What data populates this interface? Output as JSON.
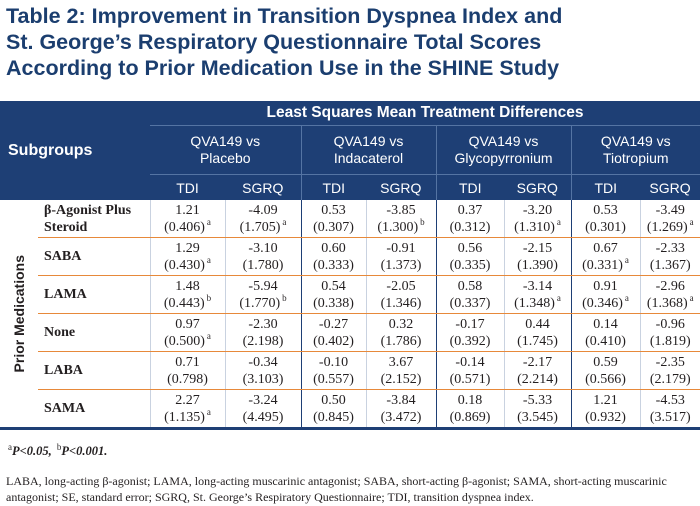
{
  "title": {
    "line1": "Table 2: Improvement in Transition Dyspnea Index and",
    "line2": "St. George’s Respiratory Questionnaire Total Scores",
    "line3": "According to Prior Medication Use in the SHINE Study"
  },
  "header": {
    "group_title": "Least Squares Mean Treatment Differences",
    "subgroups_label": "Subgroups",
    "comparisons": [
      {
        "line1": "QVA149 vs",
        "line2": "Placebo"
      },
      {
        "line1": "QVA149 vs",
        "line2": "Indacaterol"
      },
      {
        "line1": "QVA149 vs",
        "line2": "Glycopyrronium"
      },
      {
        "line1": "QVA149 vs",
        "line2": "Tiotropium"
      }
    ],
    "measures": [
      "TDI",
      "SGRQ",
      "TDI",
      "SGRQ",
      "TDI",
      "SGRQ",
      "TDI",
      "SGRQ"
    ]
  },
  "side_label": "Prior Medications",
  "rows": [
    {
      "label_line1": "β-Agonist Plus",
      "label_line2": "Steroid",
      "cells": [
        {
          "value": "1.21",
          "se": "(0.406)",
          "sup": "a"
        },
        {
          "value": "-4.09",
          "se": "(1.705)",
          "sup": "a"
        },
        {
          "value": "0.53",
          "se": "(0.307)",
          "sup": ""
        },
        {
          "value": "-3.85",
          "se": "(1.300)",
          "sup": "b"
        },
        {
          "value": "0.37",
          "se": "(0.312)",
          "sup": ""
        },
        {
          "value": "-3.20",
          "se": "(1.310)",
          "sup": "a"
        },
        {
          "value": "0.53",
          "se": "(0.301)",
          "sup": ""
        },
        {
          "value": "-3.49",
          "se": "(1.269)",
          "sup": "a"
        }
      ]
    },
    {
      "label_line1": "SABA",
      "label_line2": "",
      "cells": [
        {
          "value": "1.29",
          "se": "(0.430)",
          "sup": "a"
        },
        {
          "value": "-3.10",
          "se": "(1.780)",
          "sup": ""
        },
        {
          "value": "0.60",
          "se": "(0.333)",
          "sup": ""
        },
        {
          "value": "-0.91",
          "se": "(1.373)",
          "sup": ""
        },
        {
          "value": "0.56",
          "se": "(0.335)",
          "sup": ""
        },
        {
          "value": "-2.15",
          "se": "(1.390)",
          "sup": ""
        },
        {
          "value": "0.67",
          "se": "(0.331)",
          "sup": "a"
        },
        {
          "value": "-2.33",
          "se": "(1.367)",
          "sup": ""
        }
      ]
    },
    {
      "label_line1": "LAMA",
      "label_line2": "",
      "cells": [
        {
          "value": "1.48",
          "se": "(0.443)",
          "sup": "b"
        },
        {
          "value": "-5.94",
          "se": "(1.770)",
          "sup": "b"
        },
        {
          "value": "0.54",
          "se": "(0.338)",
          "sup": ""
        },
        {
          "value": "-2.05",
          "se": "(1.346)",
          "sup": ""
        },
        {
          "value": "0.58",
          "se": "(0.337)",
          "sup": ""
        },
        {
          "value": "-3.14",
          "se": "(1.348)",
          "sup": "a"
        },
        {
          "value": "0.91",
          "se": "(0.346)",
          "sup": "a"
        },
        {
          "value": "-2.96",
          "se": "(1.368)",
          "sup": "a"
        }
      ]
    },
    {
      "label_line1": "None",
      "label_line2": "",
      "cells": [
        {
          "value": "0.97",
          "se": "(0.500)",
          "sup": "a"
        },
        {
          "value": "-2.30",
          "se": "(2.198)",
          "sup": ""
        },
        {
          "value": "-0.27",
          "se": "(0.402)",
          "sup": ""
        },
        {
          "value": "0.32",
          "se": "(1.786)",
          "sup": ""
        },
        {
          "value": "-0.17",
          "se": "(0.392)",
          "sup": ""
        },
        {
          "value": "0.44",
          "se": "(1.745)",
          "sup": ""
        },
        {
          "value": "0.14",
          "se": "(0.410)",
          "sup": ""
        },
        {
          "value": "-0.96",
          "se": "(1.819)",
          "sup": ""
        }
      ]
    },
    {
      "label_line1": "LABA",
      "label_line2": "",
      "cells": [
        {
          "value": "0.71",
          "se": "(0.798)",
          "sup": ""
        },
        {
          "value": "-0.34",
          "se": "(3.103)",
          "sup": ""
        },
        {
          "value": "-0.10",
          "se": "(0.557)",
          "sup": ""
        },
        {
          "value": "3.67",
          "se": "(2.152)",
          "sup": ""
        },
        {
          "value": "-0.14",
          "se": "(0.571)",
          "sup": ""
        },
        {
          "value": "-2.17",
          "se": "(2.214)",
          "sup": ""
        },
        {
          "value": "0.59",
          "se": "(0.566)",
          "sup": ""
        },
        {
          "value": "-2.35",
          "se": "(2.179)",
          "sup": ""
        }
      ]
    },
    {
      "label_line1": "SAMA",
      "label_line2": "",
      "cells": [
        {
          "value": "2.27",
          "se": "(1.135)",
          "sup": "a"
        },
        {
          "value": "-3.24",
          "se": "(4.495)",
          "sup": ""
        },
        {
          "value": "0.50",
          "se": "(0.845)",
          "sup": ""
        },
        {
          "value": "-3.84",
          "se": "(3.472)",
          "sup": ""
        },
        {
          "value": "0.18",
          "se": "(0.869)",
          "sup": ""
        },
        {
          "value": "-5.33",
          "se": "(3.545)",
          "sup": ""
        },
        {
          "value": "1.21",
          "se": "(0.932)",
          "sup": ""
        },
        {
          "value": "-4.53",
          "se": "(3.517)",
          "sup": ""
        }
      ]
    }
  ],
  "footnotes": {
    "sig_a_mark": "a",
    "sig_a_text": "P<0.05, ",
    "sig_b_mark": "b",
    "sig_b_text": "P<0.001.",
    "abbreviations": "LABA, long-acting β-agonist; LAMA, long-acting muscarinic antagonist; SABA, short-acting β-agonist; SAMA, short-acting muscarinic antagonist; SE, standard error; SGRQ, St. George’s Respiratory Questionnaire; TDI, transition dyspnea index."
  },
  "colors": {
    "header_bg": "#1e3f75",
    "title_text": "#1b3e6f",
    "row_divider": "#e7893a"
  }
}
